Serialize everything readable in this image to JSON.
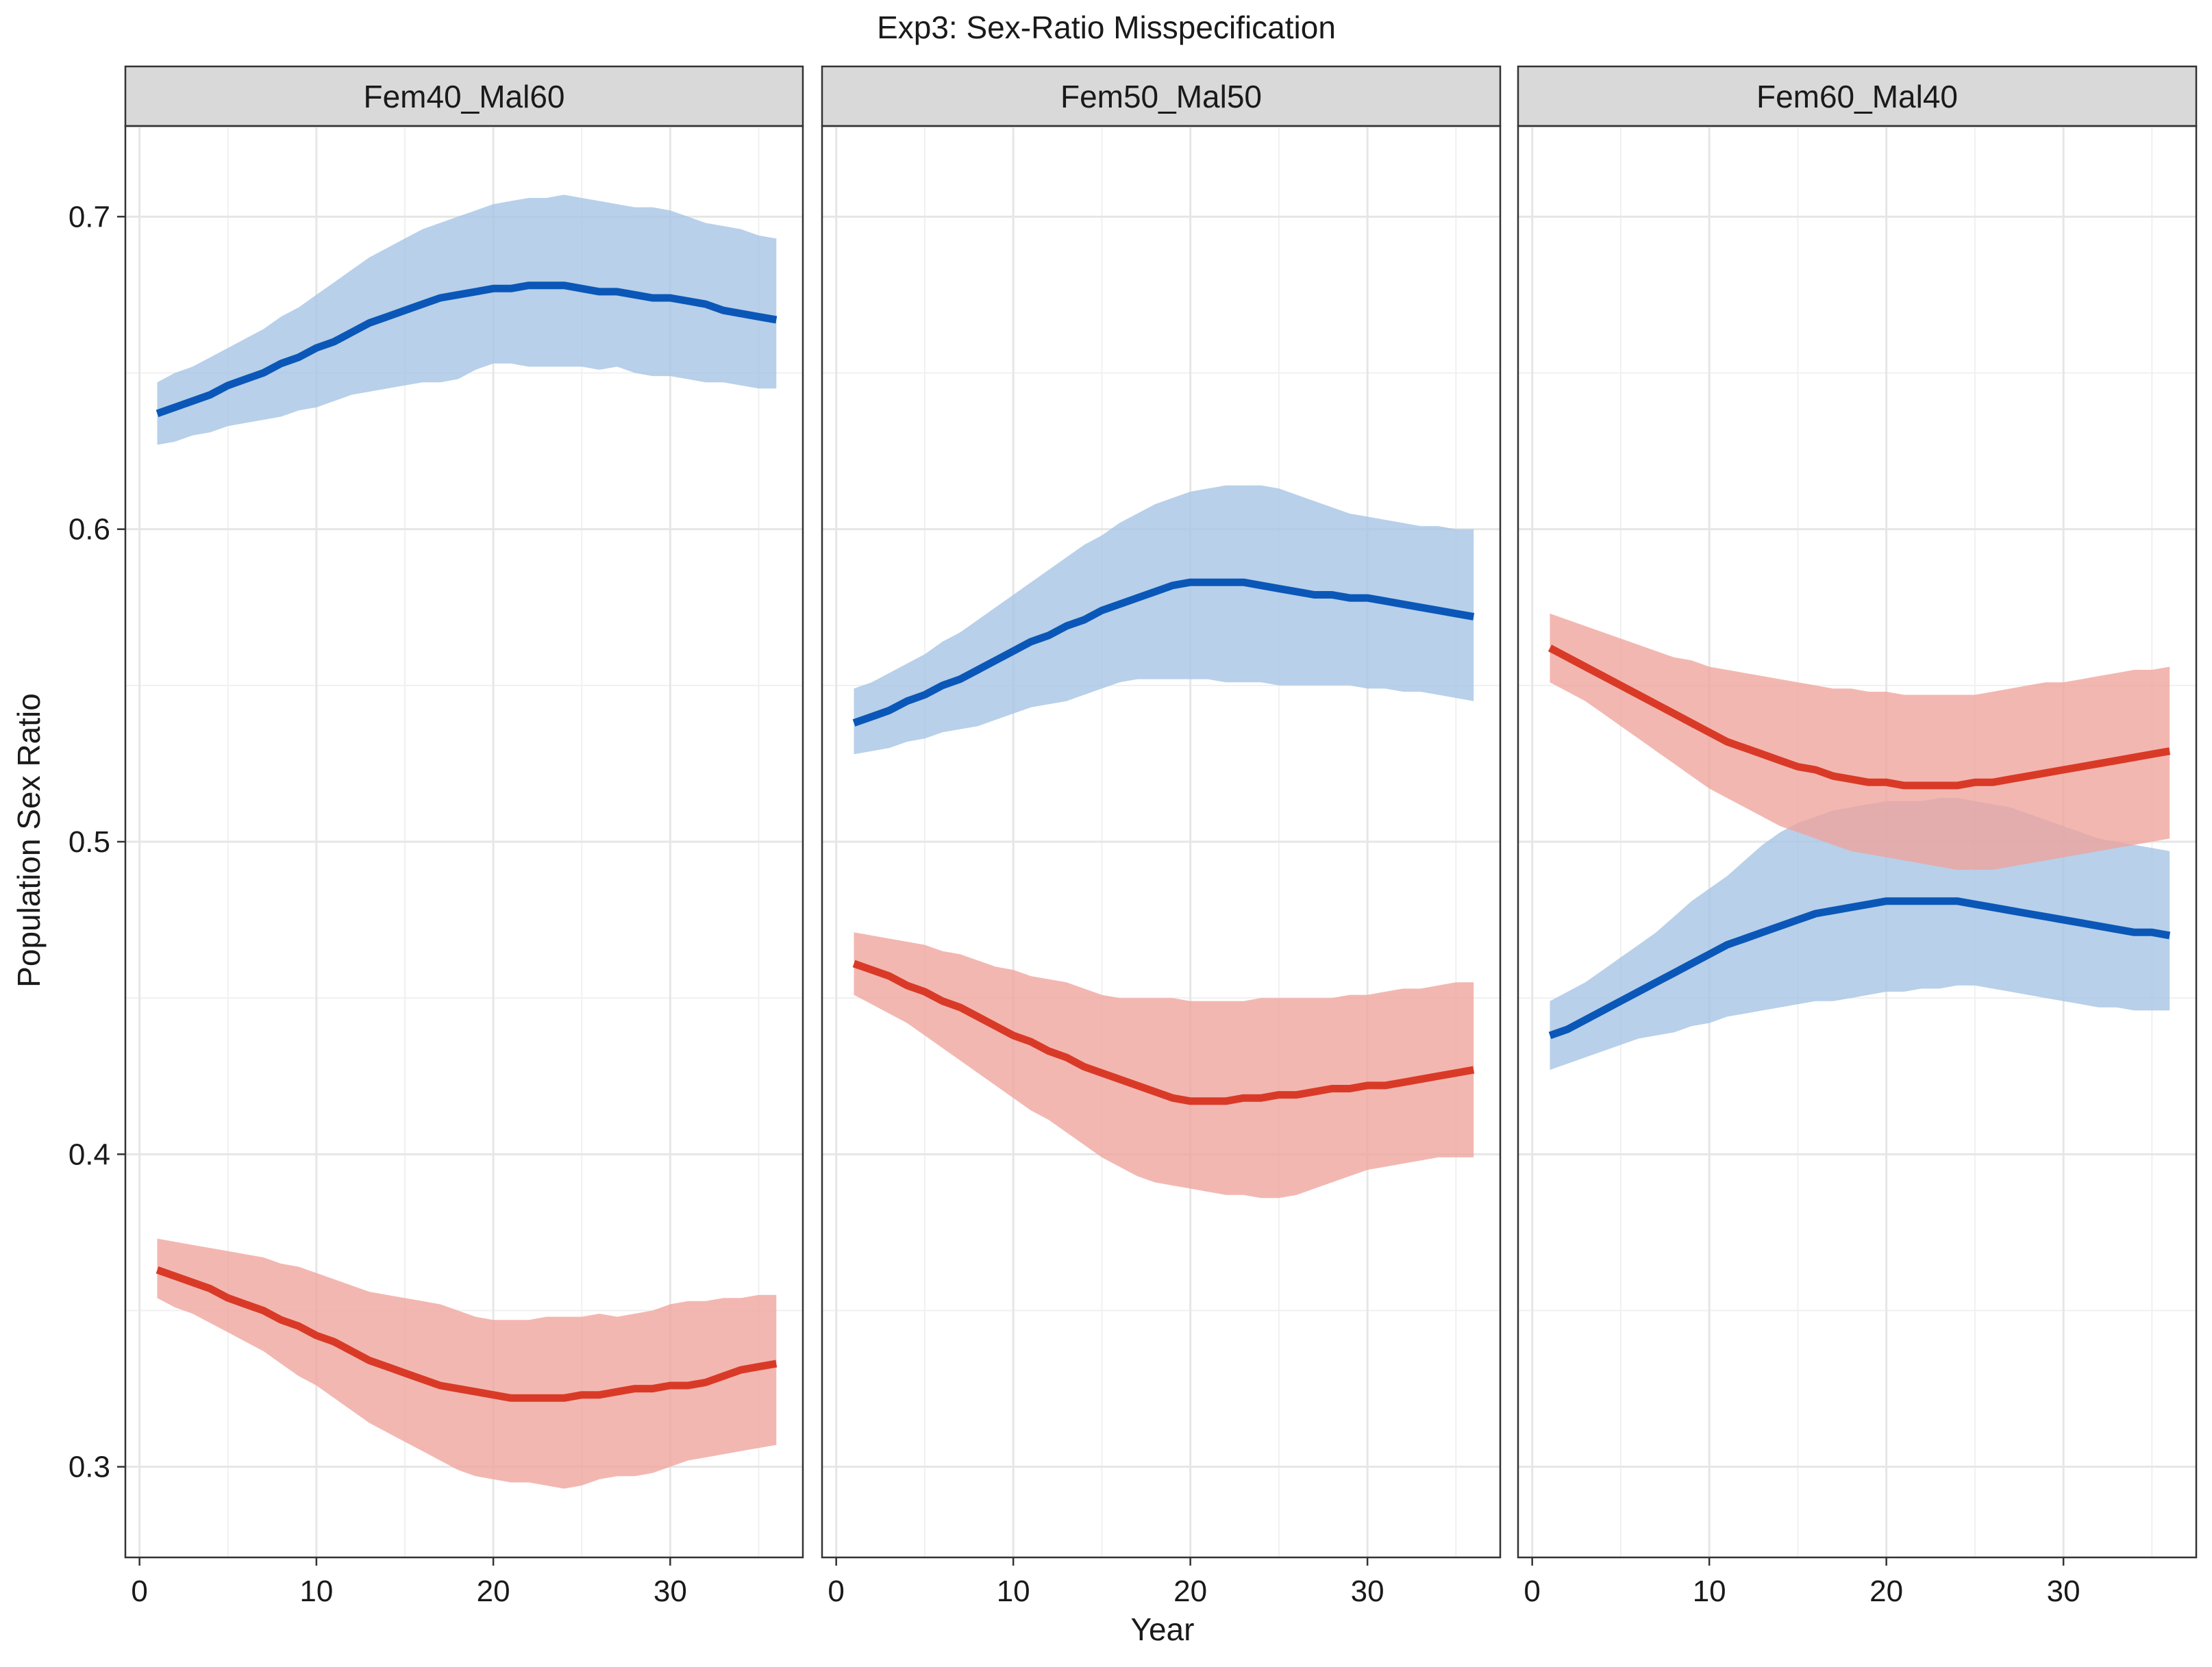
{
  "chart_data": {
    "type": "line",
    "title": "Exp3: Sex-Ratio Misspecification",
    "xlabel": "Year",
    "ylabel": "Population Sex Ratio",
    "xlim": [
      -0.8,
      37.5
    ],
    "ylim": [
      0.271,
      0.729
    ],
    "x_ticks": [
      0,
      10,
      20,
      30
    ],
    "x_tick_labels": [
      "0",
      "10",
      "20",
      "30"
    ],
    "y_ticks": [
      0.3,
      0.4,
      0.5,
      0.6,
      0.7
    ],
    "y_tick_labels": [
      "0.3",
      "0.4",
      "0.5",
      "0.6",
      "0.7"
    ],
    "grid": true,
    "legend": "none",
    "series_colors": {
      "blue_line": "#0a57b8",
      "blue_band": "#a4c3e4",
      "red_line": "#d93a27",
      "red_band": "#f0a39b"
    },
    "x": [
      1,
      2,
      3,
      4,
      5,
      6,
      7,
      8,
      9,
      10,
      11,
      12,
      13,
      14,
      15,
      16,
      17,
      18,
      19,
      20,
      21,
      22,
      23,
      24,
      25,
      26,
      27,
      28,
      29,
      30,
      31,
      32,
      33,
      34,
      35,
      36
    ],
    "panels": [
      {
        "strip_label": "Fem40_Mal60",
        "series": [
          {
            "color_key": "blue",
            "mean": [
              0.637,
              0.639,
              0.641,
              0.643,
              0.646,
              0.648,
              0.65,
              0.653,
              0.655,
              0.658,
              0.66,
              0.663,
              0.666,
              0.668,
              0.67,
              0.672,
              0.674,
              0.675,
              0.676,
              0.677,
              0.677,
              0.678,
              0.678,
              0.678,
              0.677,
              0.676,
              0.676,
              0.675,
              0.674,
              0.674,
              0.673,
              0.672,
              0.67,
              0.669,
              0.668,
              0.667
            ],
            "lower": [
              0.627,
              0.628,
              0.63,
              0.631,
              0.633,
              0.634,
              0.635,
              0.636,
              0.638,
              0.639,
              0.641,
              0.643,
              0.644,
              0.645,
              0.646,
              0.647,
              0.647,
              0.648,
              0.651,
              0.653,
              0.653,
              0.652,
              0.652,
              0.652,
              0.652,
              0.651,
              0.652,
              0.65,
              0.649,
              0.649,
              0.648,
              0.647,
              0.647,
              0.646,
              0.645,
              0.645
            ],
            "upper": [
              0.647,
              0.65,
              0.652,
              0.655,
              0.658,
              0.661,
              0.664,
              0.668,
              0.671,
              0.675,
              0.679,
              0.683,
              0.687,
              0.69,
              0.693,
              0.696,
              0.698,
              0.7,
              0.702,
              0.704,
              0.705,
              0.706,
              0.706,
              0.707,
              0.706,
              0.705,
              0.704,
              0.703,
              0.703,
              0.702,
              0.7,
              0.698,
              0.697,
              0.696,
              0.694,
              0.693
            ]
          },
          {
            "color_key": "red",
            "mean": [
              0.363,
              0.361,
              0.359,
              0.357,
              0.354,
              0.352,
              0.35,
              0.347,
              0.345,
              0.342,
              0.34,
              0.337,
              0.334,
              0.332,
              0.33,
              0.328,
              0.326,
              0.325,
              0.324,
              0.323,
              0.322,
              0.322,
              0.322,
              0.322,
              0.323,
              0.323,
              0.324,
              0.325,
              0.325,
              0.326,
              0.326,
              0.327,
              0.329,
              0.331,
              0.332,
              0.333
            ],
            "lower": [
              0.354,
              0.351,
              0.349,
              0.346,
              0.343,
              0.34,
              0.337,
              0.333,
              0.329,
              0.326,
              0.322,
              0.318,
              0.314,
              0.311,
              0.308,
              0.305,
              0.302,
              0.299,
              0.297,
              0.296,
              0.295,
              0.295,
              0.294,
              0.293,
              0.294,
              0.296,
              0.297,
              0.297,
              0.298,
              0.3,
              0.302,
              0.303,
              0.304,
              0.305,
              0.306,
              0.307
            ],
            "upper": [
              0.373,
              0.372,
              0.371,
              0.37,
              0.369,
              0.368,
              0.367,
              0.365,
              0.364,
              0.362,
              0.36,
              0.358,
              0.356,
              0.355,
              0.354,
              0.353,
              0.352,
              0.35,
              0.348,
              0.347,
              0.347,
              0.347,
              0.348,
              0.348,
              0.348,
              0.349,
              0.348,
              0.349,
              0.35,
              0.352,
              0.353,
              0.353,
              0.354,
              0.354,
              0.355,
              0.355
            ]
          }
        ]
      },
      {
        "strip_label": "Fem50_Mal50",
        "series": [
          {
            "color_key": "blue",
            "mean": [
              0.538,
              0.54,
              0.542,
              0.545,
              0.547,
              0.55,
              0.552,
              0.555,
              0.558,
              0.561,
              0.564,
              0.566,
              0.569,
              0.571,
              0.574,
              0.576,
              0.578,
              0.58,
              0.582,
              0.583,
              0.583,
              0.583,
              0.583,
              0.582,
              0.581,
              0.58,
              0.579,
              0.579,
              0.578,
              0.578,
              0.577,
              0.576,
              0.575,
              0.574,
              0.573,
              0.572
            ],
            "lower": [
              0.528,
              0.529,
              0.53,
              0.532,
              0.533,
              0.535,
              0.536,
              0.537,
              0.539,
              0.541,
              0.543,
              0.544,
              0.545,
              0.547,
              0.549,
              0.551,
              0.552,
              0.552,
              0.552,
              0.552,
              0.552,
              0.551,
              0.551,
              0.551,
              0.55,
              0.55,
              0.55,
              0.55,
              0.55,
              0.549,
              0.549,
              0.548,
              0.548,
              0.547,
              0.546,
              0.545
            ],
            "upper": [
              0.549,
              0.551,
              0.554,
              0.557,
              0.56,
              0.564,
              0.567,
              0.571,
              0.575,
              0.579,
              0.583,
              0.587,
              0.591,
              0.595,
              0.598,
              0.602,
              0.605,
              0.608,
              0.61,
              0.612,
              0.613,
              0.614,
              0.614,
              0.614,
              0.613,
              0.611,
              0.609,
              0.607,
              0.605,
              0.604,
              0.603,
              0.602,
              0.601,
              0.601,
              0.6,
              0.6
            ]
          },
          {
            "color_key": "red",
            "mean": [
              0.461,
              0.459,
              0.457,
              0.454,
              0.452,
              0.449,
              0.447,
              0.444,
              0.441,
              0.438,
              0.436,
              0.433,
              0.431,
              0.428,
              0.426,
              0.424,
              0.422,
              0.42,
              0.418,
              0.417,
              0.417,
              0.417,
              0.418,
              0.418,
              0.419,
              0.419,
              0.42,
              0.421,
              0.421,
              0.422,
              0.422,
              0.423,
              0.424,
              0.425,
              0.426,
              0.427
            ],
            "lower": [
              0.451,
              0.448,
              0.445,
              0.442,
              0.438,
              0.434,
              0.43,
              0.426,
              0.422,
              0.418,
              0.414,
              0.411,
              0.407,
              0.403,
              0.399,
              0.396,
              0.393,
              0.391,
              0.39,
              0.389,
              0.388,
              0.387,
              0.387,
              0.386,
              0.386,
              0.387,
              0.389,
              0.391,
              0.393,
              0.395,
              0.396,
              0.397,
              0.398,
              0.399,
              0.399,
              0.399
            ],
            "upper": [
              0.471,
              0.47,
              0.469,
              0.468,
              0.467,
              0.465,
              0.464,
              0.462,
              0.46,
              0.459,
              0.457,
              0.456,
              0.455,
              0.453,
              0.451,
              0.45,
              0.45,
              0.45,
              0.45,
              0.449,
              0.449,
              0.449,
              0.449,
              0.45,
              0.45,
              0.45,
              0.45,
              0.45,
              0.451,
              0.451,
              0.452,
              0.453,
              0.453,
              0.454,
              0.455,
              0.455
            ]
          }
        ]
      },
      {
        "strip_label": "Fem60_Mal40",
        "series": [
          {
            "color_key": "blue",
            "mean": [
              0.438,
              0.44,
              0.443,
              0.446,
              0.449,
              0.452,
              0.455,
              0.458,
              0.461,
              0.464,
              0.467,
              0.469,
              0.471,
              0.473,
              0.475,
              0.477,
              0.478,
              0.479,
              0.48,
              0.481,
              0.481,
              0.481,
              0.481,
              0.481,
              0.48,
              0.479,
              0.478,
              0.477,
              0.476,
              0.475,
              0.474,
              0.473,
              0.472,
              0.471,
              0.471,
              0.47
            ],
            "lower": [
              0.427,
              0.429,
              0.431,
              0.433,
              0.435,
              0.437,
              0.438,
              0.439,
              0.441,
              0.442,
              0.444,
              0.445,
              0.446,
              0.447,
              0.448,
              0.449,
              0.449,
              0.45,
              0.451,
              0.452,
              0.452,
              0.453,
              0.453,
              0.454,
              0.454,
              0.453,
              0.452,
              0.451,
              0.45,
              0.449,
              0.448,
              0.447,
              0.447,
              0.446,
              0.446,
              0.446
            ],
            "upper": [
              0.449,
              0.452,
              0.455,
              0.459,
              0.463,
              0.467,
              0.471,
              0.476,
              0.481,
              0.485,
              0.489,
              0.494,
              0.499,
              0.503,
              0.506,
              0.508,
              0.51,
              0.511,
              0.512,
              0.513,
              0.513,
              0.513,
              0.514,
              0.514,
              0.513,
              0.512,
              0.511,
              0.509,
              0.507,
              0.505,
              0.503,
              0.501,
              0.5,
              0.499,
              0.498,
              0.497
            ]
          },
          {
            "color_key": "red",
            "mean": [
              0.562,
              0.559,
              0.556,
              0.553,
              0.55,
              0.547,
              0.544,
              0.541,
              0.538,
              0.535,
              0.532,
              0.53,
              0.528,
              0.526,
              0.524,
              0.523,
              0.521,
              0.52,
              0.519,
              0.519,
              0.518,
              0.518,
              0.518,
              0.518,
              0.519,
              0.519,
              0.52,
              0.521,
              0.522,
              0.523,
              0.524,
              0.525,
              0.526,
              0.527,
              0.528,
              0.529
            ],
            "lower": [
              0.551,
              0.548,
              0.545,
              0.541,
              0.537,
              0.533,
              0.529,
              0.525,
              0.521,
              0.517,
              0.514,
              0.511,
              0.508,
              0.505,
              0.503,
              0.501,
              0.499,
              0.497,
              0.496,
              0.495,
              0.494,
              0.493,
              0.492,
              0.491,
              0.491,
              0.491,
              0.492,
              0.493,
              0.494,
              0.495,
              0.496,
              0.497,
              0.498,
              0.499,
              0.5,
              0.501
            ],
            "upper": [
              0.573,
              0.571,
              0.569,
              0.567,
              0.565,
              0.563,
              0.561,
              0.559,
              0.558,
              0.556,
              0.555,
              0.554,
              0.553,
              0.552,
              0.551,
              0.55,
              0.549,
              0.549,
              0.548,
              0.548,
              0.547,
              0.547,
              0.547,
              0.547,
              0.547,
              0.548,
              0.549,
              0.55,
              0.551,
              0.551,
              0.552,
              0.553,
              0.554,
              0.555,
              0.555,
              0.556
            ]
          }
        ]
      }
    ]
  }
}
